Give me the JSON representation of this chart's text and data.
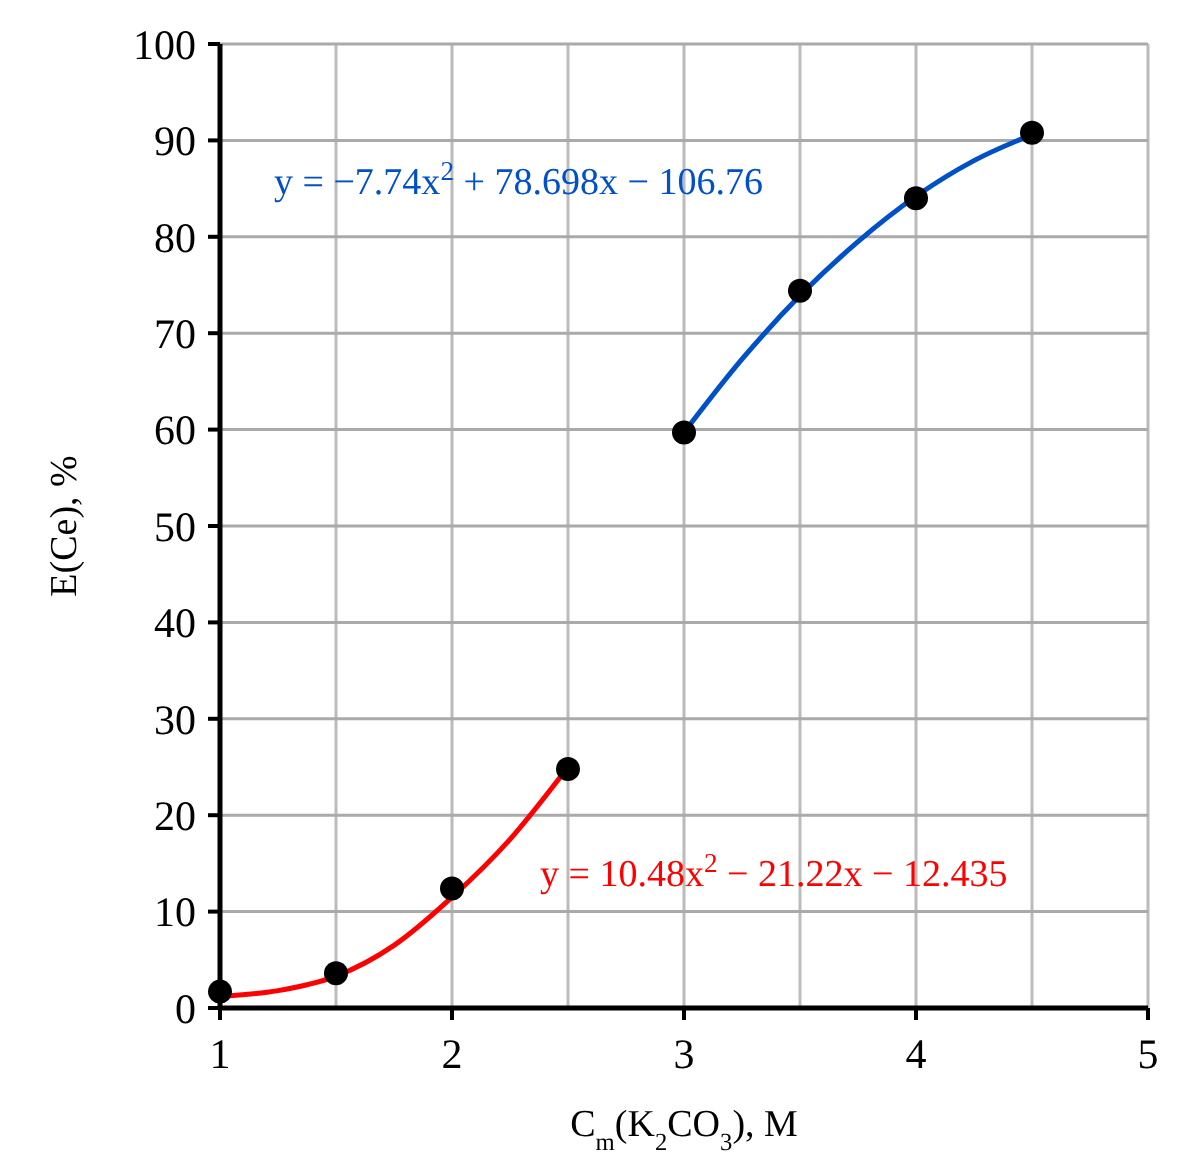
{
  "chart_data": {
    "type": "scatter",
    "xlabel": "C$_{m}$(K$_{2}$CO$_{3}$), M",
    "ylabel": "E(Ce), %",
    "xlim": [
      1,
      5
    ],
    "xticks": [
      1,
      2,
      3,
      4,
      5
    ],
    "ylim": [
      0,
      100
    ],
    "yticks": [
      0,
      10,
      20,
      30,
      40,
      50,
      60,
      70,
      80,
      90,
      100
    ],
    "grid": true,
    "marker": "circle",
    "series": [
      {
        "color": "#000000",
        "x": [
          1,
          1.5,
          2,
          2.5,
          3,
          3.5,
          4,
          4.5
        ],
        "values": [
          1.7,
          3.6,
          12.4,
          24.8,
          59.7,
          74.4,
          84.0,
          90.8
        ]
      },
      {
        "type": "line",
        "color": "#ff0000",
        "marker": "none",
        "x": [
          1,
          1.25,
          1.5,
          1.75,
          2,
          2.25,
          2.5
        ],
        "values": [
          1.2,
          1.8,
          3.3,
          6.5,
          11.5,
          17.5,
          25
        ]
      },
      {
        "type": "line",
        "color": "#0050c8",
        "marker": "none",
        "x": [
          3,
          3.25,
          3.5,
          3.75,
          4,
          4.25,
          4.5
        ],
        "values": [
          59.7,
          67.3,
          73.9,
          79.5,
          84.2,
          87.9,
          90.6
        ]
      }
    ],
    "annotations": [
      "y = 10.48x$^{2}$ − 21.22x − 12.435",
      "y = −7.74x$^{2}$ + 78.698x − 106.76"
    ]
  }
}
